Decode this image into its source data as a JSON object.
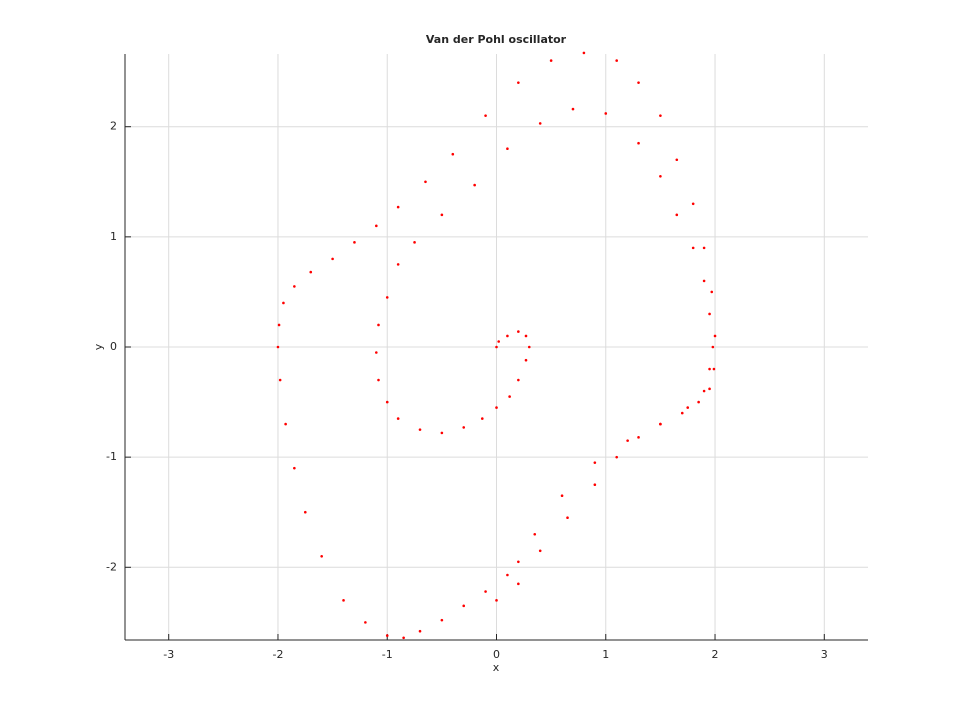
{
  "chart_data": {
    "type": "scatter",
    "title": "Van der Pohl oscillator",
    "x_label": "x",
    "y_label": "y",
    "xlim": [
      -3.4,
      3.4
    ],
    "ylim": [
      -2.66,
      2.66
    ],
    "xticks": [
      -3,
      -2,
      -1,
      0,
      1,
      2,
      3
    ],
    "yticks": [
      -2,
      -1,
      0,
      1,
      2
    ],
    "grid": true,
    "series": [
      {
        "color": "#ff0000",
        "x": [
          0,
          0.02,
          0.1,
          0.2,
          0.27,
          0.3,
          0.27,
          0.2,
          0.12,
          0,
          -0.13,
          -0.3,
          -0.5,
          -0.7,
          -0.9,
          -1.0,
          -1.08,
          -1.1,
          -1.08,
          -1.0,
          -0.9,
          -0.75,
          -0.5,
          -0.2,
          0.1,
          0.4,
          0.7,
          1.0,
          1.3,
          1.5,
          1.65,
          1.8,
          1.9,
          1.95,
          1.98,
          1.95,
          1.9,
          1.75,
          1.5,
          1.2,
          0.9,
          0.6,
          0.35,
          0.2,
          0.1,
          -0.1,
          -0.3,
          -0.5,
          -0.7,
          -0.85,
          -1.0,
          -1.2,
          -1.4,
          -1.6,
          -1.75,
          -1.85,
          -1.93,
          -1.98,
          -2.0,
          -1.99,
          -1.95,
          -1.85,
          -1.7,
          -1.5,
          -1.3,
          -1.1,
          -0.9,
          -0.65,
          -0.4,
          -0.1,
          0.2,
          0.5,
          0.8,
          1.1,
          1.3,
          1.5,
          1.65,
          1.8,
          1.9,
          1.97,
          2.0,
          1.99,
          1.95,
          1.85,
          1.7,
          1.5,
          1.3,
          1.1,
          0.9,
          0.65,
          0.4,
          0.2,
          0.0
        ],
        "values": [
          0,
          0.05,
          0.1,
          0.14,
          0.1,
          0,
          -0.12,
          -0.3,
          -0.45,
          -0.55,
          -0.65,
          -0.73,
          -0.78,
          -0.75,
          -0.65,
          -0.5,
          -0.3,
          -0.05,
          0.2,
          0.45,
          0.75,
          0.95,
          1.2,
          1.47,
          1.8,
          2.03,
          2.16,
          2.12,
          1.85,
          1.55,
          1.2,
          0.9,
          0.6,
          0.3,
          0,
          -0.2,
          -0.4,
          -0.55,
          -0.7,
          -0.85,
          -1.05,
          -1.35,
          -1.7,
          -1.95,
          -2.07,
          -2.22,
          -2.35,
          -2.48,
          -2.58,
          -2.64,
          -2.62,
          -2.5,
          -2.3,
          -1.9,
          -1.5,
          -1.1,
          -0.7,
          -0.3,
          0,
          0.2,
          0.4,
          0.55,
          0.68,
          0.8,
          0.95,
          1.1,
          1.27,
          1.5,
          1.75,
          2.1,
          2.4,
          2.6,
          2.67,
          2.6,
          2.4,
          2.1,
          1.7,
          1.3,
          0.9,
          0.5,
          0.1,
          -0.2,
          -0.38,
          -0.5,
          -0.6,
          -0.7,
          -0.82,
          -1.0,
          -1.25,
          -1.55,
          -1.85,
          -2.15,
          -2.3
        ]
      }
    ]
  }
}
